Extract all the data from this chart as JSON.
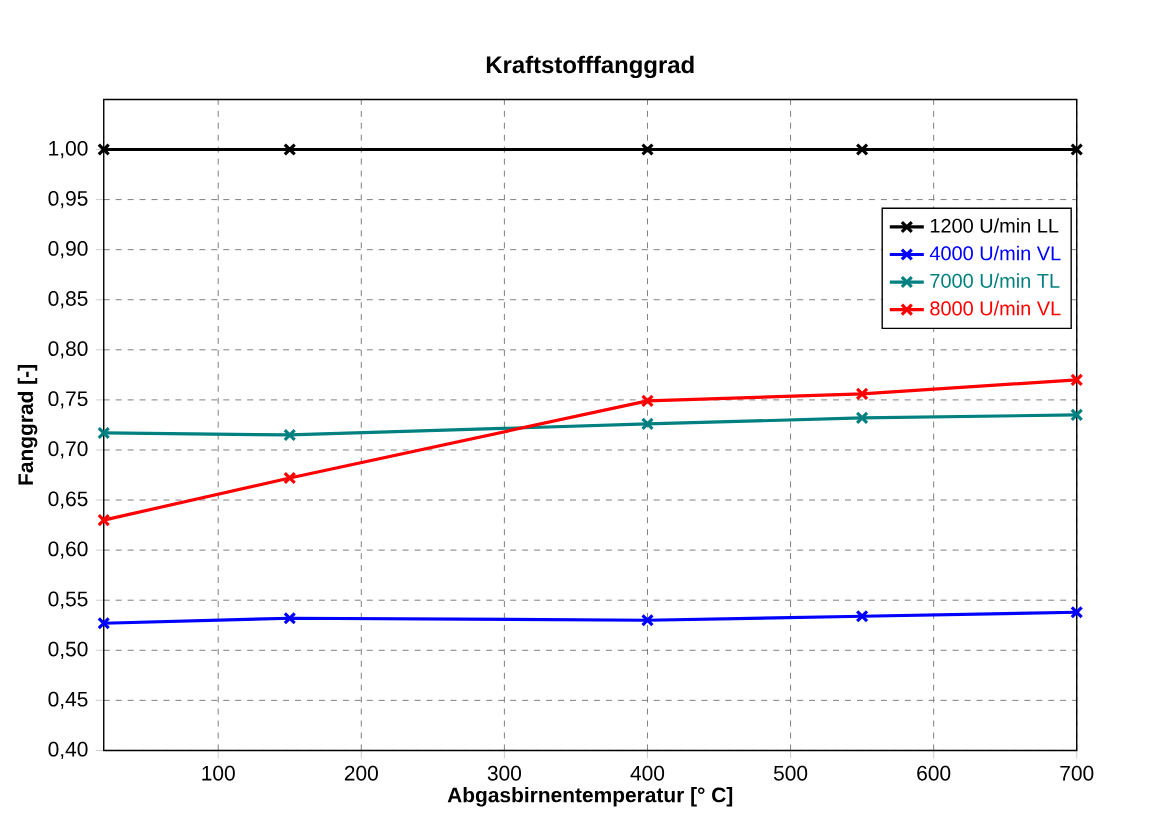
{
  "chart_data": {
    "type": "line",
    "title": "Kraftstofffanggrad",
    "xlabel": "Abgasbirnentemperatur [° C]",
    "ylabel": "Fanggrad [-]",
    "x": [
      20,
      150,
      400,
      550,
      700
    ],
    "series": [
      {
        "name": "1200 U/min LL",
        "color": "#000000",
        "values": [
          1.0,
          1.0,
          1.0,
          1.0,
          1.0
        ]
      },
      {
        "name": "4000 U/min VL",
        "color": "#0000ff",
        "values": [
          0.527,
          0.532,
          0.53,
          0.534,
          0.538
        ]
      },
      {
        "name": "7000 U/min TL",
        "color": "#008080",
        "values": [
          0.717,
          0.715,
          0.726,
          0.732,
          0.735
        ]
      },
      {
        "name": "8000 U/min VL",
        "color": "#ff0000",
        "values": [
          0.63,
          0.672,
          0.749,
          0.756,
          0.77
        ]
      }
    ],
    "xlim": [
      20,
      700
    ],
    "xticks": [
      100,
      200,
      300,
      400,
      500,
      600,
      700
    ],
    "ylim": [
      0.4,
      1.05
    ],
    "yticks": [
      {
        "value": 0.4,
        "label": "0,40"
      },
      {
        "value": 0.45,
        "label": "0,45"
      },
      {
        "value": 0.5,
        "label": "0,50"
      },
      {
        "value": 0.55,
        "label": "0,55"
      },
      {
        "value": 0.6,
        "label": "0,60"
      },
      {
        "value": 0.65,
        "label": "0,65"
      },
      {
        "value": 0.7,
        "label": "0,70"
      },
      {
        "value": 0.75,
        "label": "0,75"
      },
      {
        "value": 0.8,
        "label": "0,80"
      },
      {
        "value": 0.85,
        "label": "0,85"
      },
      {
        "value": 0.9,
        "label": "0,90"
      },
      {
        "value": 0.95,
        "label": "0,95"
      },
      {
        "value": 1.0,
        "label": "1,00"
      }
    ],
    "grid": true,
    "legend": "top right",
    "marker": "cross",
    "line_style": "solid"
  }
}
